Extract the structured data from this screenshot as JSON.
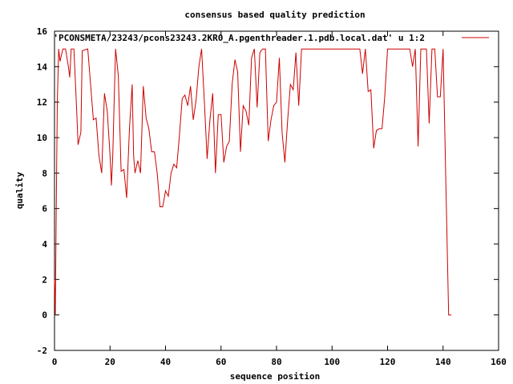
{
  "chart_data": {
    "type": "line",
    "title": "consensus based quality prediction",
    "xlabel": "sequence position",
    "ylabel": "quality",
    "xlim": [
      0,
      160
    ],
    "ylim": [
      -2,
      16
    ],
    "xticks": [
      0,
      20,
      40,
      60,
      80,
      100,
      120,
      140,
      160
    ],
    "yticks": [
      -2,
      0,
      2,
      4,
      6,
      8,
      10,
      12,
      14,
      16
    ],
    "grid": false,
    "legend_position": "top-right",
    "series": [
      {
        "name": "'PCONSMETA/23243/pcons23243.2KR0_A.pgenthreader.1.pdb.local.dat' u 1:2",
        "color": "#cc0000",
        "points": [
          [
            0,
            2.0
          ],
          [
            0.3,
            0
          ],
          [
            0.6,
            5.6
          ],
          [
            1,
            12.0
          ],
          [
            1.5,
            15.0
          ],
          [
            2,
            14.3
          ],
          [
            3,
            15.0
          ],
          [
            4,
            15.0
          ],
          [
            5,
            14.0
          ],
          [
            5.5,
            13.4
          ],
          [
            6,
            15.0
          ],
          [
            7,
            15.0
          ],
          [
            8,
            11.5
          ],
          [
            8.5,
            9.6
          ],
          [
            9.5,
            10.3
          ],
          [
            10,
            14.9
          ],
          [
            12,
            15.0
          ],
          [
            13,
            13.0
          ],
          [
            14,
            11.0
          ],
          [
            15,
            11.1
          ],
          [
            16,
            9.0
          ],
          [
            17,
            8.0
          ],
          [
            18,
            12.5
          ],
          [
            19,
            11.5
          ],
          [
            20,
            9.0
          ],
          [
            20.5,
            7.3
          ],
          [
            21,
            9.0
          ],
          [
            21.5,
            12.0
          ],
          [
            22,
            15.0
          ],
          [
            23,
            13.5
          ],
          [
            24,
            8.1
          ],
          [
            25,
            8.2
          ],
          [
            26,
            6.6
          ],
          [
            27,
            10.5
          ],
          [
            28,
            13.0
          ],
          [
            28.5,
            9.0
          ],
          [
            29,
            8.0
          ],
          [
            30,
            8.7
          ],
          [
            31,
            8.0
          ],
          [
            32,
            12.9
          ],
          [
            33,
            11.1
          ],
          [
            34,
            10.5
          ],
          [
            35,
            9.2
          ],
          [
            36,
            9.2
          ],
          [
            37,
            8.0
          ],
          [
            38,
            6.1
          ],
          [
            39,
            6.1
          ],
          [
            40,
            7.0
          ],
          [
            41,
            6.7
          ],
          [
            42,
            8.0
          ],
          [
            43,
            8.5
          ],
          [
            44,
            8.3
          ],
          [
            45,
            10.1
          ],
          [
            46,
            12.2
          ],
          [
            47,
            12.4
          ],
          [
            48,
            11.8
          ],
          [
            49,
            12.9
          ],
          [
            50,
            11.0
          ],
          [
            51,
            12.1
          ],
          [
            52,
            14.0
          ],
          [
            53,
            15.0
          ],
          [
            54,
            12.0
          ],
          [
            55,
            8.8
          ],
          [
            56,
            11.0
          ],
          [
            57,
            12.5
          ],
          [
            58,
            8.0
          ],
          [
            59,
            11.3
          ],
          [
            60,
            11.3
          ],
          [
            61,
            8.6
          ],
          [
            62,
            9.5
          ],
          [
            63,
            9.8
          ],
          [
            64,
            13.0
          ],
          [
            65,
            14.4
          ],
          [
            66,
            13.7
          ],
          [
            67,
            9.2
          ],
          [
            68,
            11.8
          ],
          [
            69,
            11.5
          ],
          [
            70,
            10.7
          ],
          [
            71,
            14.5
          ],
          [
            72,
            15.0
          ],
          [
            73,
            11.7
          ],
          [
            74,
            14.8
          ],
          [
            75,
            15.0
          ],
          [
            76,
            15.0
          ],
          [
            77,
            9.8
          ],
          [
            78,
            11.0
          ],
          [
            79,
            11.8
          ],
          [
            80,
            12.0
          ],
          [
            81,
            14.5
          ],
          [
            82,
            10.3
          ],
          [
            83,
            8.6
          ],
          [
            84,
            11.0
          ],
          [
            85,
            13.0
          ],
          [
            86,
            12.7
          ],
          [
            87,
            14.8
          ],
          [
            88,
            11.8
          ],
          [
            89,
            15.0
          ],
          [
            90,
            15.0
          ],
          [
            110,
            15.0
          ],
          [
            111,
            13.6
          ],
          [
            112,
            15.0
          ],
          [
            113,
            12.6
          ],
          [
            114,
            12.7
          ],
          [
            115,
            9.4
          ],
          [
            116,
            10.4
          ],
          [
            117,
            10.5
          ],
          [
            118,
            10.5
          ],
          [
            119,
            12.3
          ],
          [
            120,
            15.0
          ],
          [
            128,
            15.0
          ],
          [
            129,
            14.0
          ],
          [
            130,
            15.0
          ],
          [
            131,
            9.5
          ],
          [
            132,
            15.0
          ],
          [
            134,
            15.0
          ],
          [
            135,
            10.8
          ],
          [
            136,
            15.0
          ],
          [
            137,
            15.0
          ],
          [
            138,
            12.3
          ],
          [
            139,
            12.3
          ],
          [
            140,
            15.0
          ],
          [
            141,
            7.5
          ],
          [
            142,
            0
          ],
          [
            143,
            0
          ]
        ]
      }
    ]
  }
}
